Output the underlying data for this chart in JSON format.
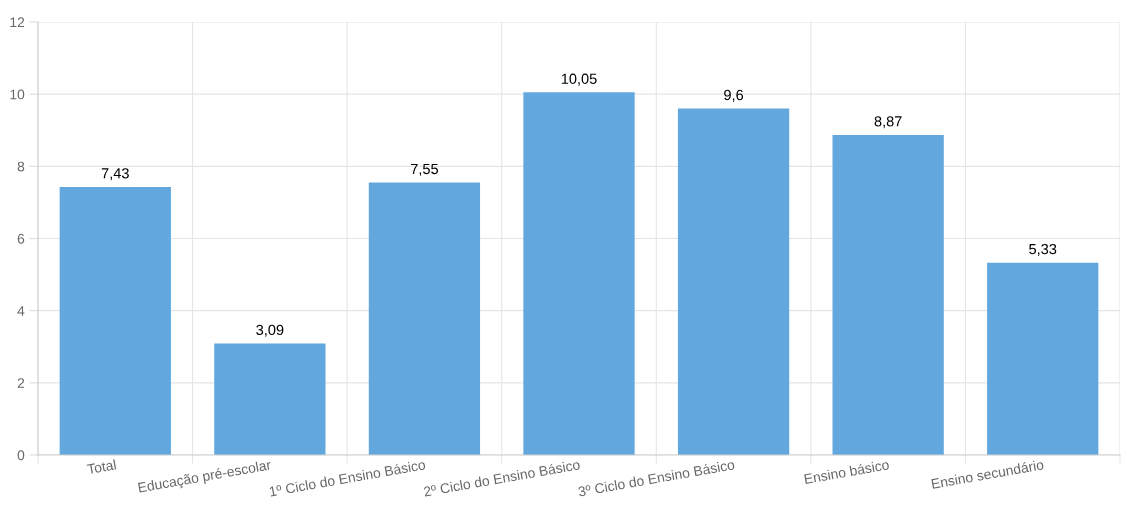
{
  "chart_data": {
    "type": "bar",
    "categories": [
      "Total",
      "Educação pré-escolar",
      "1º Ciclo do Ensino Básico",
      "2º Ciclo do Ensino Básico",
      "3º Ciclo do Ensino Básico",
      "Ensino básico",
      "Ensino secundário"
    ],
    "values": [
      7.43,
      3.09,
      7.55,
      10.05,
      9.6,
      8.87,
      5.33
    ],
    "value_labels": [
      "7,43",
      "3,09",
      "7,55",
      "10,05",
      "9,6",
      "8,87",
      "5,33"
    ],
    "color": "#62a8de",
    "ylim": [
      0,
      12
    ],
    "yticks": [
      0,
      2,
      4,
      6,
      8,
      10,
      12
    ],
    "grid": true
  }
}
